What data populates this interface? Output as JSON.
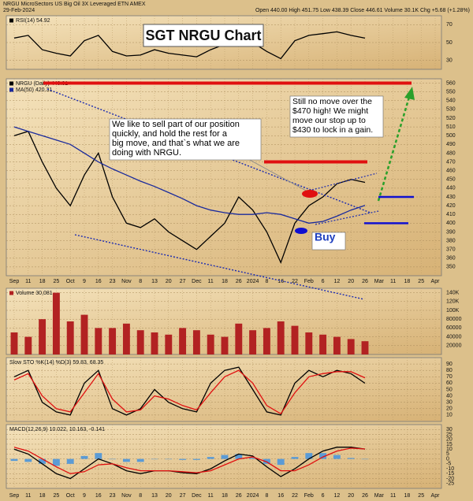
{
  "chart_data": {
    "type": "stock",
    "title": "SGT NRGU Chart",
    "description": "NRGU MicroSectors US Big Oil 3X Leveraged ETN AMEX",
    "date": "29-Feb-2024",
    "quote": "Open 440.00 High 451.75 Low 438.39 Close 446.61 Volume 30.1K Chg +5.68 (+1.28%)",
    "categories": [
      "Sep",
      "11",
      "18",
      "25",
      "Oct",
      "9",
      "16",
      "23",
      "Nov",
      "8",
      "13",
      "20",
      "27",
      "Dec",
      "11",
      "18",
      "26",
      "2024",
      "8",
      "16",
      "22",
      "Feb",
      "6",
      "12",
      "20",
      "26",
      "Mar",
      "11",
      "18",
      "25",
      "Apr"
    ],
    "panels": [
      {
        "type": "line",
        "ylim": [
          20,
          80
        ],
        "yticks": [
          30,
          50,
          70
        ],
        "grid": true,
        "series": [
          {
            "name": "RSI(14) 54.92",
            "color": "#000000",
            "type": "line",
            "values": [
              55,
              58,
              42,
              38,
              35,
              52,
              58,
              40,
              35,
              36,
              42,
              38,
              36,
              34,
              42,
              48,
              58,
              50,
              40,
              32,
              52,
              58,
              60,
              62,
              58,
              54.92,
              null,
              null,
              null,
              null,
              null
            ]
          }
        ]
      },
      {
        "type": "line",
        "ylim": [
          340,
          565
        ],
        "yticks": [
          350,
          360,
          370,
          380,
          390,
          400,
          410,
          420,
          430,
          440,
          450,
          460,
          470,
          480,
          490,
          500,
          510,
          520,
          530,
          540,
          550,
          560
        ],
        "grid": true,
        "series": [
          {
            "name": "NRGU (Daily) 446.61",
            "color": "#000000",
            "type": "line",
            "values": [
              500,
              505,
              470,
              440,
              420,
              455,
              480,
              430,
              400,
              395,
              405,
              390,
              380,
              370,
              385,
              400,
              430,
              415,
              390,
              355,
              400,
              420,
              430,
              445,
              450,
              446.61,
              null,
              null,
              null,
              null,
              null
            ]
          },
          {
            "name": "MA(50) 420.31",
            "color": "#1a2a9c",
            "type": "line",
            "values": [
              510,
              505,
              500,
              495,
              490,
              480,
              470,
              462,
              455,
              448,
              442,
              435,
              428,
              420,
              415,
              412,
              410,
              410,
              412,
              410,
              405,
              400,
              402,
              408,
              415,
              420.31,
              null,
              null,
              null,
              null,
              null
            ]
          }
        ],
        "levels": [
          {
            "value": 560,
            "color": "#e01010"
          },
          {
            "value": 470,
            "color": "#e01010"
          },
          {
            "value": 430,
            "color": "#1010d0"
          },
          {
            "value": 400,
            "color": "#1010d0"
          }
        ],
        "annotations": [
          {
            "lines": [
              "We like to sell part of our position",
              "quickly, and hold the rest for a",
              "big move, and that`s what we are",
              "doing with NRGU."
            ],
            "color": "#000000"
          },
          {
            "lines": [
              "Still no move over the",
              "$470 high!  We might",
              "move our stop up to",
              "$430 to lock in a gain."
            ],
            "color": "#000000"
          },
          {
            "lines": [
              "Buy"
            ],
            "color": "#1f3fbf"
          }
        ]
      },
      {
        "type": "bar",
        "ylim": [
          0,
          150000
        ],
        "yticks": [
          20000,
          40000,
          60000,
          80000,
          {
            "value": 100000,
            "label": "100K"
          },
          {
            "value": 120000,
            "label": "120K"
          },
          {
            "value": 140000,
            "label": "140K"
          }
        ],
        "grid": true,
        "series": [
          {
            "name": "Volume 30,081",
            "color": "#b22222",
            "type": "bar",
            "values": [
              50000,
              40000,
              80000,
              140000,
              75000,
              90000,
              60000,
              60000,
              70000,
              55000,
              50000,
              45000,
              60000,
              55000,
              45000,
              40000,
              70000,
              55000,
              60000,
              75000,
              65000,
              50000,
              45000,
              40000,
              35000,
              30081,
              null,
              null,
              null,
              null,
              null
            ]
          }
        ]
      },
      {
        "type": "line",
        "label": "Slow STO %K(14) %D(3) 59.83, 68.35",
        "ylim": [
          0,
          100
        ],
        "yticks": [
          10,
          20,
          30,
          40,
          50,
          60,
          70,
          80,
          90
        ],
        "grid": true,
        "series": [
          {
            "color": "#000000",
            "type": "line",
            "values": [
              70,
              80,
              30,
              15,
              10,
              60,
              80,
              20,
              10,
              20,
              50,
              30,
              20,
              15,
              60,
              80,
              85,
              50,
              15,
              10,
              60,
              80,
              70,
              80,
              75,
              59.83,
              null,
              null,
              null,
              null,
              null
            ]
          },
          {
            "color": "#e01010",
            "type": "line",
            "values": [
              65,
              75,
              40,
              20,
              15,
              45,
              75,
              35,
              15,
              18,
              40,
              35,
              25,
              18,
              45,
              70,
              80,
              60,
              25,
              12,
              45,
              70,
              75,
              78,
              78,
              68.35,
              null,
              null,
              null,
              null,
              null
            ]
          }
        ]
      },
      {
        "type": "line",
        "label": "MACD(12,26,9) 10.022, 10.163, -0.141",
        "ylim": [
          -30,
          35
        ],
        "yticks": [
          -25,
          -20,
          -15,
          -10,
          -5,
          0,
          5,
          10,
          15,
          20,
          25,
          30
        ],
        "grid": true,
        "series": [
          {
            "color": "#5b9bd5",
            "type": "bar",
            "values": [
              -2,
              -3,
              -5,
              -7,
              -5,
              3,
              6,
              0,
              -3,
              -3,
              0,
              0,
              -1,
              -1,
              2,
              4,
              5,
              1,
              -5,
              -6,
              2,
              6,
              6,
              4,
              1,
              -0.141,
              null,
              null,
              null,
              null,
              null
            ]
          },
          {
            "color": "#000000",
            "type": "line",
            "values": [
              10,
              5,
              -5,
              -15,
              -20,
              -10,
              0,
              -5,
              -12,
              -15,
              -12,
              -12,
              -14,
              -15,
              -10,
              -2,
              5,
              3,
              -8,
              -18,
              -10,
              0,
              8,
              12,
              12,
              10.022,
              null,
              null,
              null,
              null,
              null
            ]
          },
          {
            "color": "#e01010",
            "type": "line",
            "values": [
              12,
              8,
              0,
              -8,
              -15,
              -13,
              -6,
              -5,
              -9,
              -12,
              -12,
              -12,
              -13,
              -14,
              -12,
              -6,
              0,
              2,
              -3,
              -12,
              -12,
              -6,
              2,
              8,
              11,
              10.163,
              null,
              null,
              null,
              null,
              null
            ]
          }
        ]
      }
    ]
  }
}
